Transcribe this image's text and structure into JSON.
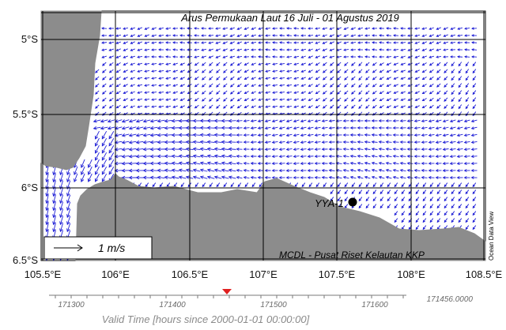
{
  "map": {
    "title": "Arus Permukaan Laut 16 Juli - 01 Agustus 2019",
    "credit": "MCDL - Pusat Riset Kelautan KKP",
    "watermark": "Ocean Data View",
    "station": {
      "label": "YYA-1",
      "lon": 107.6,
      "lat": -6.1
    },
    "scale_label": "1 m/s",
    "lon_ticks": [
      "105.5°E",
      "106°E",
      "106.5°E",
      "107°E",
      "107.5°E",
      "108°E",
      "108.5°E"
    ],
    "lat_ticks": [
      "5°S",
      "5.5°S",
      "6°S",
      "6.5°S"
    ],
    "extent": {
      "lon_min": 105.5,
      "lon_max": 108.5,
      "lat_min": -6.5,
      "lat_max": -4.85
    },
    "colors": {
      "land": "#8c8c8c",
      "arrow": "#1f1fd6",
      "grid": "#000000",
      "sea": "#ffffff"
    }
  },
  "timeline": {
    "ticks": [
      "171300",
      "171400",
      "171500",
      "171600"
    ],
    "current_value": "171456.0000",
    "label": "Valid Time [hours since 2000-01-01 00:00:00]",
    "marker_color": "#e02020"
  }
}
